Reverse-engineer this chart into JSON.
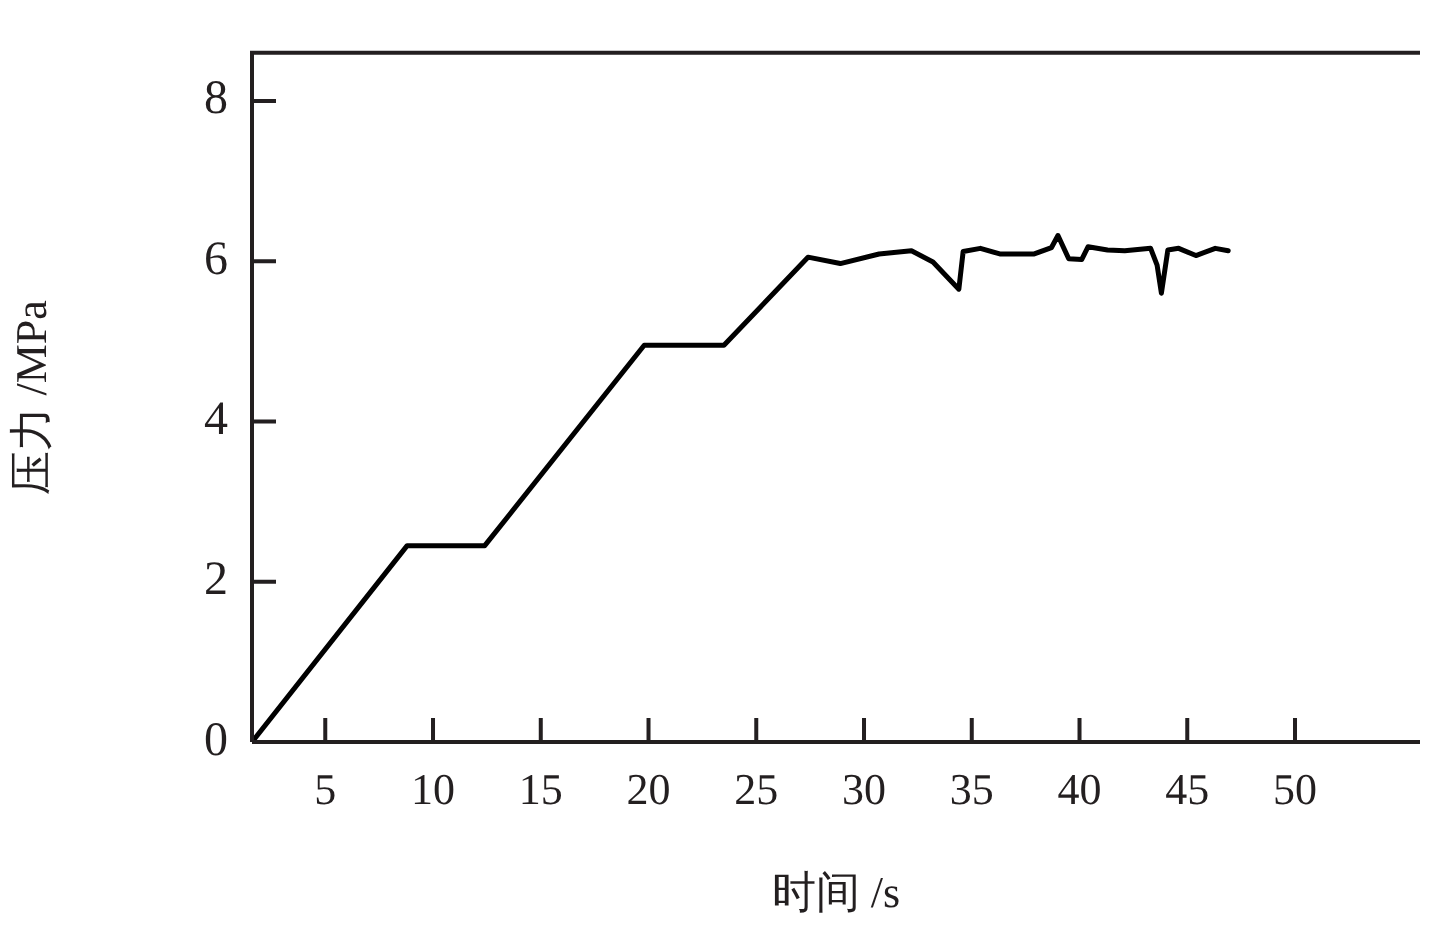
{
  "chart_data": {
    "type": "line",
    "xlabel": "时间 /s",
    "ylabel": "压力 /MPa",
    "xlim": [
      1.6,
      55.8
    ],
    "xticks": [
      5,
      10,
      15,
      20,
      25,
      30,
      35,
      40,
      45,
      50
    ],
    "ylim": [
      0,
      8.6
    ],
    "yticks": [
      0,
      2,
      4,
      6,
      8
    ],
    "grid": false,
    "legend": false,
    "marker": "none",
    "line_style": "solid",
    "series": [
      {
        "color": "#000000",
        "x": [
          1.6,
          8.8,
          12.4,
          19.8,
          23.5,
          27.4,
          28.9,
          30.7,
          32.2,
          33.2,
          34.4,
          34.6,
          35.4,
          36.3,
          37.9,
          38.7,
          39.0,
          39.5,
          40.1,
          40.4,
          41.3,
          42.1,
          43.3,
          43.6,
          43.8,
          44.1,
          44.6,
          45.4,
          46.3,
          46.9
        ],
        "values": [
          0,
          2.45,
          2.45,
          4.95,
          4.95,
          6.05,
          5.97,
          6.09,
          6.13,
          5.99,
          5.65,
          6.12,
          6.16,
          6.09,
          6.09,
          6.17,
          6.32,
          6.03,
          6.02,
          6.18,
          6.14,
          6.13,
          6.16,
          5.95,
          5.6,
          6.14,
          6.16,
          6.07,
          6.16,
          6.13
        ]
      }
    ]
  }
}
